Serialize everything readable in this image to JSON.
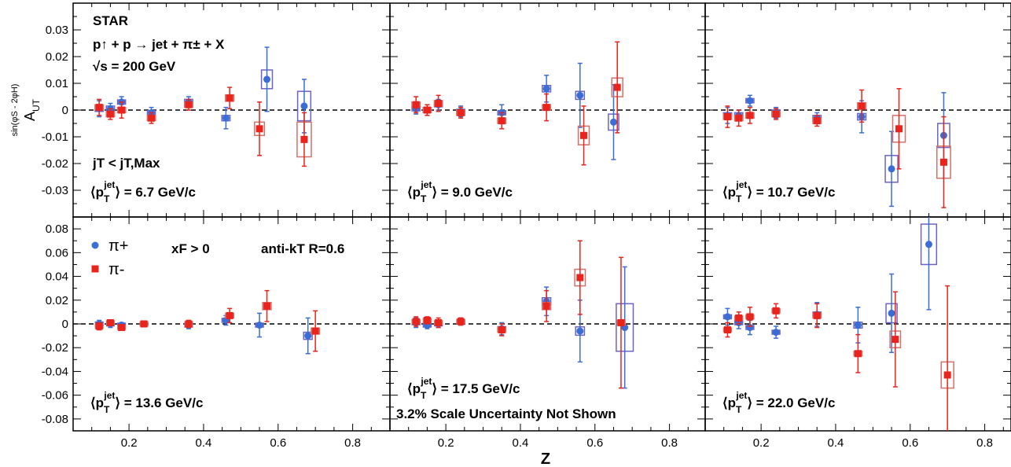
{
  "figure": {
    "experiment": "STAR",
    "process": "p↑ + p → jet + π± + X",
    "energy": "√s = 200 GeV",
    "x_label": "Z",
    "y_label_main": "A",
    "y_label_sub": "UT",
    "y_label_sup": "sin(φS - 2φH)",
    "jt_cut": "jT < jT,Max",
    "xf_cut": "xF > 0",
    "jet_alg": "anti-kT R=0.6",
    "scale_note": "3.2% Scale Uncertainty Not Shown",
    "legend": [
      {
        "label": "π+",
        "marker": "circle",
        "color": "#3a6ed4"
      },
      {
        "label": "π-",
        "marker": "square",
        "color": "#e8241c"
      }
    ],
    "colors": {
      "pi_plus": "#3a6ed4",
      "pi_minus": "#e8241c",
      "pi_plus_box": "#6b63c9",
      "pi_minus_box": "#d4706a"
    }
  },
  "chart_data": [
    {
      "type": "scatter",
      "panel": "top-left",
      "pt_label": "6.7 GeV/c",
      "xlim": [
        0.05,
        0.9
      ],
      "ylim": [
        -0.04,
        0.04
      ],
      "yticks": [
        "0.03",
        "0.02",
        "0.01",
        "0",
        "-0.01",
        "-0.02",
        "-0.03"
      ],
      "xticks": [
        "0.2",
        "0.4",
        "0.6",
        "0.8"
      ],
      "series": [
        {
          "name": "π+",
          "points": [
            {
              "x": 0.12,
              "y": 0.0005,
              "stat": 0.003,
              "sys": 0.001
            },
            {
              "x": 0.15,
              "y": 0.0005,
              "stat": 0.002,
              "sys": 0.001
            },
            {
              "x": 0.18,
              "y": 0.003,
              "stat": 0.002,
              "sys": 0.0008
            },
            {
              "x": 0.26,
              "y": -0.001,
              "stat": 0.002,
              "sys": 0.0008
            },
            {
              "x": 0.36,
              "y": 0.003,
              "stat": 0.002,
              "sys": 0.001
            },
            {
              "x": 0.46,
              "y": -0.003,
              "stat": 0.004,
              "sys": 0.001
            },
            {
              "x": 0.57,
              "y": 0.0115,
              "stat": 0.012,
              "sys": 0.0035
            },
            {
              "x": 0.67,
              "y": 0.0015,
              "stat": 0.01,
              "sys": 0.0055
            }
          ]
        },
        {
          "name": "π-",
          "points": [
            {
              "x": 0.12,
              "y": 0.001,
              "stat": 0.003,
              "sys": 0.001
            },
            {
              "x": 0.15,
              "y": -0.0015,
              "stat": 0.002,
              "sys": 0.001
            },
            {
              "x": 0.18,
              "y": 0.0,
              "stat": 0.003,
              "sys": 0.001
            },
            {
              "x": 0.26,
              "y": -0.003,
              "stat": 0.002,
              "sys": 0.001
            },
            {
              "x": 0.36,
              "y": 0.002,
              "stat": 0.002,
              "sys": 0.001
            },
            {
              "x": 0.47,
              "y": 0.0045,
              "stat": 0.004,
              "sys": 0.0012
            },
            {
              "x": 0.55,
              "y": -0.007,
              "stat": 0.01,
              "sys": 0.0025
            },
            {
              "x": 0.67,
              "y": -0.011,
              "stat": 0.01,
              "sys": 0.0065
            }
          ]
        }
      ]
    },
    {
      "type": "scatter",
      "panel": "top-middle",
      "pt_label": "9.0 GeV/c",
      "xlim": [
        0.05,
        0.9
      ],
      "ylim": [
        -0.04,
        0.04
      ],
      "xticks": [
        "0.2",
        "0.4",
        "0.6",
        "0.8"
      ],
      "series": [
        {
          "name": "π+",
          "points": [
            {
              "x": 0.12,
              "y": 0.0005,
              "stat": 0.002,
              "sys": 0.0008
            },
            {
              "x": 0.15,
              "y": 0.0,
              "stat": 0.002,
              "sys": 0.0008
            },
            {
              "x": 0.18,
              "y": 0.002,
              "stat": 0.002,
              "sys": 0.0008
            },
            {
              "x": 0.24,
              "y": -0.0005,
              "stat": 0.002,
              "sys": 0.0008
            },
            {
              "x": 0.35,
              "y": -0.001,
              "stat": 0.003,
              "sys": 0.0008
            },
            {
              "x": 0.47,
              "y": 0.008,
              "stat": 0.005,
              "sys": 0.0012
            },
            {
              "x": 0.56,
              "y": 0.0055,
              "stat": 0.012,
              "sys": 0.0015
            },
            {
              "x": 0.65,
              "y": -0.0045,
              "stat": 0.014,
              "sys": 0.003
            }
          ]
        },
        {
          "name": "π-",
          "points": [
            {
              "x": 0.12,
              "y": 0.002,
              "stat": 0.003,
              "sys": 0.001
            },
            {
              "x": 0.15,
              "y": 0.0,
              "stat": 0.002,
              "sys": 0.001
            },
            {
              "x": 0.18,
              "y": 0.0025,
              "stat": 0.003,
              "sys": 0.001
            },
            {
              "x": 0.24,
              "y": -0.001,
              "stat": 0.002,
              "sys": 0.001
            },
            {
              "x": 0.35,
              "y": -0.004,
              "stat": 0.003,
              "sys": 0.001
            },
            {
              "x": 0.47,
              "y": 0.001,
              "stat": 0.005,
              "sys": 0.001
            },
            {
              "x": 0.57,
              "y": -0.0095,
              "stat": 0.011,
              "sys": 0.0035
            },
            {
              "x": 0.66,
              "y": 0.0085,
              "stat": 0.017,
              "sys": 0.0035
            }
          ]
        }
      ]
    },
    {
      "type": "scatter",
      "panel": "top-right",
      "pt_label": "10.7 GeV/c",
      "xlim": [
        0.05,
        0.9
      ],
      "ylim": [
        -0.04,
        0.04
      ],
      "xticks": [
        "0.2",
        "0.4",
        "0.6",
        "0.8"
      ],
      "series": [
        {
          "name": "π+",
          "points": [
            {
              "x": 0.11,
              "y": -0.002,
              "stat": 0.003,
              "sys": 0.001
            },
            {
              "x": 0.14,
              "y": -0.002,
              "stat": 0.002,
              "sys": 0.001
            },
            {
              "x": 0.17,
              "y": 0.0035,
              "stat": 0.002,
              "sys": 0.0008
            },
            {
              "x": 0.24,
              "y": -0.001,
              "stat": 0.002,
              "sys": 0.001
            },
            {
              "x": 0.35,
              "y": -0.003,
              "stat": 0.002,
              "sys": 0.001
            },
            {
              "x": 0.47,
              "y": -0.0025,
              "stat": 0.006,
              "sys": 0.0012
            },
            {
              "x": 0.55,
              "y": -0.022,
              "stat": 0.014,
              "sys": 0.005
            },
            {
              "x": 0.69,
              "y": -0.0095,
              "stat": 0.016,
              "sys": 0.0045
            }
          ]
        },
        {
          "name": "π-",
          "points": [
            {
              "x": 0.11,
              "y": -0.0025,
              "stat": 0.004,
              "sys": 0.001
            },
            {
              "x": 0.14,
              "y": -0.003,
              "stat": 0.003,
              "sys": 0.001
            },
            {
              "x": 0.17,
              "y": -0.002,
              "stat": 0.003,
              "sys": 0.001
            },
            {
              "x": 0.24,
              "y": -0.0015,
              "stat": 0.002,
              "sys": 0.001
            },
            {
              "x": 0.35,
              "y": -0.004,
              "stat": 0.002,
              "sys": 0.001
            },
            {
              "x": 0.47,
              "y": 0.0015,
              "stat": 0.006,
              "sys": 0.0012
            },
            {
              "x": 0.57,
              "y": -0.007,
              "stat": 0.015,
              "sys": 0.005
            },
            {
              "x": 0.69,
              "y": -0.0195,
              "stat": 0.017,
              "sys": 0.006
            }
          ]
        }
      ]
    },
    {
      "type": "scatter",
      "panel": "bottom-left",
      "pt_label": "13.6 GeV/c",
      "xlim": [
        0.05,
        0.9
      ],
      "ylim": [
        -0.09,
        0.09
      ],
      "yticks": [
        "0.08",
        "0.06",
        "0.04",
        "0.02",
        "0",
        "-0.02",
        "-0.04",
        "-0.06",
        "-0.08"
      ],
      "xticks": [
        "0.2",
        "0.4",
        "0.6",
        "0.8"
      ],
      "series": [
        {
          "name": "π+",
          "points": [
            {
              "x": 0.12,
              "y": 0.0,
              "stat": 0.003,
              "sys": 0.001
            },
            {
              "x": 0.15,
              "y": 0.0,
              "stat": 0.003,
              "sys": 0.001
            },
            {
              "x": 0.18,
              "y": -0.001,
              "stat": 0.002,
              "sys": 0.001
            },
            {
              "x": 0.24,
              "y": 0.0,
              "stat": 0.002,
              "sys": 0.001
            },
            {
              "x": 0.36,
              "y": -0.001,
              "stat": 0.003,
              "sys": 0.001
            },
            {
              "x": 0.46,
              "y": 0.003,
              "stat": 0.004,
              "sys": 0.0015
            },
            {
              "x": 0.55,
              "y": -0.001,
              "stat": 0.01,
              "sys": 0.0015
            },
            {
              "x": 0.68,
              "y": -0.01,
              "stat": 0.015,
              "sys": 0.003
            }
          ]
        },
        {
          "name": "π-",
          "points": [
            {
              "x": 0.12,
              "y": -0.002,
              "stat": 0.003,
              "sys": 0.001
            },
            {
              "x": 0.15,
              "y": 0.001,
              "stat": 0.002,
              "sys": 0.001
            },
            {
              "x": 0.18,
              "y": -0.003,
              "stat": 0.002,
              "sys": 0.001
            },
            {
              "x": 0.24,
              "y": 0.0,
              "stat": 0.002,
              "sys": 0.001
            },
            {
              "x": 0.36,
              "y": 0.0,
              "stat": 0.003,
              "sys": 0.001
            },
            {
              "x": 0.47,
              "y": 0.007,
              "stat": 0.006,
              "sys": 0.002
            },
            {
              "x": 0.57,
              "y": 0.015,
              "stat": 0.013,
              "sys": 0.003
            },
            {
              "x": 0.7,
              "y": -0.006,
              "stat": 0.017,
              "sys": 0.0025
            }
          ]
        }
      ]
    },
    {
      "type": "scatter",
      "panel": "bottom-middle",
      "pt_label": "17.5 GeV/c",
      "xlim": [
        0.05,
        0.9
      ],
      "ylim": [
        -0.09,
        0.09
      ],
      "xticks": [
        "0.2",
        "0.4",
        "0.6",
        "0.8"
      ],
      "series": [
        {
          "name": "π+",
          "points": [
            {
              "x": 0.12,
              "y": 0.001,
              "stat": 0.004,
              "sys": 0.0015
            },
            {
              "x": 0.15,
              "y": -0.001,
              "stat": 0.003,
              "sys": 0.0015
            },
            {
              "x": 0.18,
              "y": 0.0,
              "stat": 0.003,
              "sys": 0.0015
            },
            {
              "x": 0.24,
              "y": 0.002,
              "stat": 0.003,
              "sys": 0.0015
            },
            {
              "x": 0.35,
              "y": -0.004,
              "stat": 0.005,
              "sys": 0.0015
            },
            {
              "x": 0.47,
              "y": 0.019,
              "stat": 0.012,
              "sys": 0.003
            },
            {
              "x": 0.56,
              "y": -0.006,
              "stat": 0.026,
              "sys": 0.0035
            },
            {
              "x": 0.68,
              "y": -0.003,
              "stat": 0.051,
              "sys": 0.02
            }
          ]
        },
        {
          "name": "π-",
          "points": [
            {
              "x": 0.12,
              "y": 0.002,
              "stat": 0.004,
              "sys": 0.0015
            },
            {
              "x": 0.15,
              "y": 0.003,
              "stat": 0.003,
              "sys": 0.0015
            },
            {
              "x": 0.18,
              "y": 0.001,
              "stat": 0.004,
              "sys": 0.0015
            },
            {
              "x": 0.24,
              "y": 0.002,
              "stat": 0.003,
              "sys": 0.0015
            },
            {
              "x": 0.35,
              "y": -0.005,
              "stat": 0.005,
              "sys": 0.002
            },
            {
              "x": 0.47,
              "y": 0.015,
              "stat": 0.013,
              "sys": 0.003
            },
            {
              "x": 0.56,
              "y": 0.039,
              "stat": 0.031,
              "sys": 0.007
            },
            {
              "x": 0.67,
              "y": 0.001,
              "stat": 0.055,
              "sys": 0.002
            }
          ]
        }
      ]
    },
    {
      "type": "scatter",
      "panel": "bottom-right",
      "pt_label": "22.0 GeV/c",
      "xlim": [
        0.05,
        0.9
      ],
      "ylim": [
        -0.09,
        0.09
      ],
      "xticks": [
        "0.2",
        "0.4",
        "0.6",
        "0.8"
      ],
      "series": [
        {
          "name": "π+",
          "points": [
            {
              "x": 0.11,
              "y": 0.006,
              "stat": 0.007,
              "sys": 0.0015
            },
            {
              "x": 0.14,
              "y": 0.001,
              "stat": 0.005,
              "sys": 0.0015
            },
            {
              "x": 0.17,
              "y": -0.003,
              "stat": 0.006,
              "sys": 0.0015
            },
            {
              "x": 0.24,
              "y": -0.007,
              "stat": 0.005,
              "sys": 0.0015
            },
            {
              "x": 0.35,
              "y": 0.008,
              "stat": 0.01,
              "sys": 0.002
            },
            {
              "x": 0.46,
              "y": -0.001,
              "stat": 0.015,
              "sys": 0.0025
            },
            {
              "x": 0.55,
              "y": 0.009,
              "stat": 0.033,
              "sys": 0.008
            },
            {
              "x": 0.65,
              "y": 0.067,
              "stat": 0.055,
              "sys": 0.017
            }
          ]
        },
        {
          "name": "π-",
          "points": [
            {
              "x": 0.11,
              "y": -0.005,
              "stat": 0.006,
              "sys": 0.0015
            },
            {
              "x": 0.14,
              "y": 0.005,
              "stat": 0.005,
              "sys": 0.0015
            },
            {
              "x": 0.17,
              "y": 0.006,
              "stat": 0.008,
              "sys": 0.0015
            },
            {
              "x": 0.24,
              "y": 0.011,
              "stat": 0.006,
              "sys": 0.0015
            },
            {
              "x": 0.35,
              "y": 0.007,
              "stat": 0.01,
              "sys": 0.002
            },
            {
              "x": 0.46,
              "y": -0.025,
              "stat": 0.016,
              "sys": 0.002
            },
            {
              "x": 0.56,
              "y": -0.013,
              "stat": 0.04,
              "sys": 0.007
            },
            {
              "x": 0.7,
              "y": -0.043,
              "stat": 0.075,
              "sys": 0.011
            }
          ]
        }
      ]
    }
  ]
}
